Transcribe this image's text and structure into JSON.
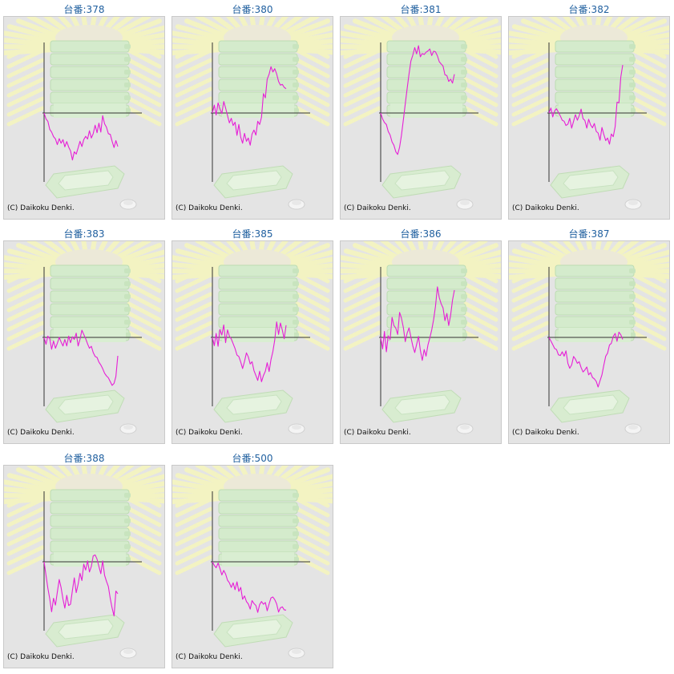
{
  "copyright": "(C) Daikoku Denki.",
  "colors": {
    "line": "#e61fd6",
    "axis": "#333333",
    "title": "#1f5f9f",
    "background": "#e4e4e4"
  },
  "chart_data": [
    {
      "type": "line",
      "title": "台番:378",
      "values": [
        0,
        -1.8,
        -2.5,
        -5,
        -5.8,
        -7.2,
        -7.9,
        -9.6,
        -7.8,
        -9.2,
        -8.1,
        -10.3,
        -8.7,
        -10.4,
        -11.5,
        -14.3,
        -11.8,
        -12.5,
        -10.6,
        -8.6,
        -10.2,
        -8.1,
        -7.1,
        -7.9,
        -5.4,
        -7.6,
        -6.3,
        -3.7,
        -6,
        -3.1,
        -5.8,
        -0.8,
        -3.3,
        -4.3,
        -6.3,
        -6.5,
        -8.6,
        -10.5,
        -8.4,
        -10.2
      ]
    },
    {
      "type": "line",
      "title": "台番:380",
      "values": [
        0,
        2.4,
        -0.6,
        3.1,
        1.3,
        -0.2,
        3.5,
        1.5,
        -0.8,
        -3,
        -1.6,
        -3.8,
        -2.8,
        -6.8,
        -3.5,
        -7.4,
        -9.2,
        -6.2,
        -8.6,
        -7.6,
        -9.8,
        -6.4,
        -5.2,
        -6.7,
        -2.5,
        -3.5,
        -1.3,
        5.9,
        4.6,
        10.3,
        11.8,
        14.1,
        12.5,
        13.5,
        11.9,
        9.6,
        8.5,
        8.7,
        7.8,
        7.4
      ]
    },
    {
      "type": "line",
      "title": "台番:381",
      "values": [
        0,
        -1.8,
        -2.9,
        -3.5,
        -5.6,
        -6.7,
        -8.8,
        -9.8,
        -11.8,
        -12.6,
        -10.4,
        -6.8,
        -2.1,
        2.8,
        7.4,
        11.9,
        15.8,
        17.6,
        19.9,
        18,
        20.5,
        17.1,
        18.1,
        17.8,
        18.5,
        18.9,
        19.5,
        17.5,
        18.8,
        18.6,
        17.4,
        15.6,
        14.9,
        14.3,
        11.6,
        11.4,
        9.6,
        10.3,
        9.1,
        11.8
      ]
    },
    {
      "type": "line",
      "title": "台番:382",
      "values": [
        0,
        1.5,
        -1.2,
        0.7,
        1.3,
        0.2,
        -0.9,
        -2.2,
        -2.5,
        -3.8,
        -3.4,
        -1.6,
        -4.6,
        -2.5,
        -0.5,
        -2.2,
        -0.8,
        1.2,
        -1.7,
        -2.3,
        -4.6,
        -1.9,
        -3.6,
        -4.5,
        -3.2,
        -5.6,
        -6.1,
        -8.3,
        -4.4,
        -6.5,
        -8.4,
        -7.6,
        -9.5,
        -6.4,
        -7.2,
        -4.1,
        3.3,
        3.1,
        10.9,
        14.6
      ]
    },
    {
      "type": "line",
      "title": "台番:383",
      "values": [
        0,
        -2.1,
        0.4,
        -0.4,
        -3.6,
        -1.1,
        -3.3,
        -1.8,
        0,
        -1.4,
        -2.6,
        -0.6,
        -2.6,
        0.4,
        -1.6,
        0.2,
        -0.6,
        1.3,
        -2.6,
        -0.6,
        2.2,
        0.9,
        -0.4,
        -2,
        -3.3,
        -2.7,
        -4.6,
        -5.8,
        -6.1,
        -7.5,
        -8.4,
        -9.5,
        -10.9,
        -11.7,
        -12.3,
        -13.5,
        -14.6,
        -14,
        -11.9,
        -5.6
      ]
    },
    {
      "type": "line",
      "title": "台番:385",
      "values": [
        0,
        -2.5,
        1.2,
        -2.7,
        2.4,
        0.7,
        3.8,
        -1.6,
        2.3,
        0.4,
        -0.5,
        -1.9,
        -3.4,
        -5.4,
        -5.8,
        -7.5,
        -9.5,
        -7.3,
        -4.7,
        -5.9,
        -8.1,
        -7.4,
        -10.1,
        -11.6,
        -13.1,
        -10.3,
        -13.5,
        -11.6,
        -10.3,
        -7.7,
        -10.4,
        -6.8,
        -4.3,
        -0.8,
        4.7,
        0.9,
        4.4,
        2.2,
        -0.4,
        3.7
      ]
    },
    {
      "type": "line",
      "title": "台番:386",
      "values": [
        0,
        -3.5,
        1.8,
        -4.4,
        0.5,
        -0.6,
        6.1,
        3.6,
        2.8,
        0.9,
        7.6,
        5.9,
        3,
        -1.3,
        1.3,
        2.9,
        0.1,
        -2.6,
        -4.6,
        -2.2,
        0.3,
        -3.9,
        -7,
        -3.7,
        -5.7,
        -2.3,
        -0.2,
        2.3,
        5.5,
        9.5,
        15.4,
        12.1,
        10.2,
        9,
        5.1,
        7.3,
        3.6,
        6.8,
        11.3,
        14.4
      ]
    },
    {
      "type": "line",
      "title": "台番:387",
      "values": [
        0,
        -1.1,
        -2.2,
        -3.4,
        -3.7,
        -5.3,
        -5.5,
        -4.4,
        -5.7,
        -4.1,
        -7.9,
        -9.4,
        -8.4,
        -5.8,
        -6.6,
        -7.9,
        -7.4,
        -9.2,
        -10.5,
        -9.9,
        -9,
        -11.4,
        -10.7,
        -12.2,
        -12.6,
        -13.4,
        -15.1,
        -13.2,
        -11.4,
        -8.5,
        -5.7,
        -4.8,
        -2.3,
        -1.8,
        0.3,
        1.2,
        -1.2,
        1.6,
        0.8,
        -0.6
      ]
    },
    {
      "type": "line",
      "title": "台番:388",
      "values": [
        0,
        -4.1,
        -8,
        -11.3,
        -15.2,
        -11.1,
        -13.2,
        -9.3,
        -5.4,
        -7.8,
        -11.4,
        -14.1,
        -10.2,
        -13.3,
        -12.9,
        -8.6,
        -4.9,
        -9.4,
        -6.8,
        -3.5,
        -5.7,
        -0.7,
        -2.5,
        0.3,
        -3.1,
        -1.4,
        1.8,
        2.1,
        0.8,
        -1.4,
        -3.6,
        0.3,
        -4.1,
        -5.9,
        -7.5,
        -11.2,
        -14.1,
        -16.5,
        -8.9,
        -9.7
      ]
    },
    {
      "type": "line",
      "title": "台番:500",
      "values": [
        0,
        -1.1,
        -1.8,
        -0.4,
        -2,
        -4,
        -2.6,
        -3.7,
        -5.6,
        -6.4,
        -7.8,
        -6.4,
        -8.5,
        -6.1,
        -9,
        -7.8,
        -11.4,
        -10.4,
        -12.1,
        -12.8,
        -14.4,
        -11.8,
        -12.7,
        -13.3,
        -15.4,
        -13,
        -12.1,
        -12.9,
        -12.4,
        -14.9,
        -12.8,
        -11,
        -10.7,
        -11.5,
        -12.8,
        -15.3,
        -14,
        -13.7,
        -14.6,
        -14.7
      ]
    }
  ]
}
